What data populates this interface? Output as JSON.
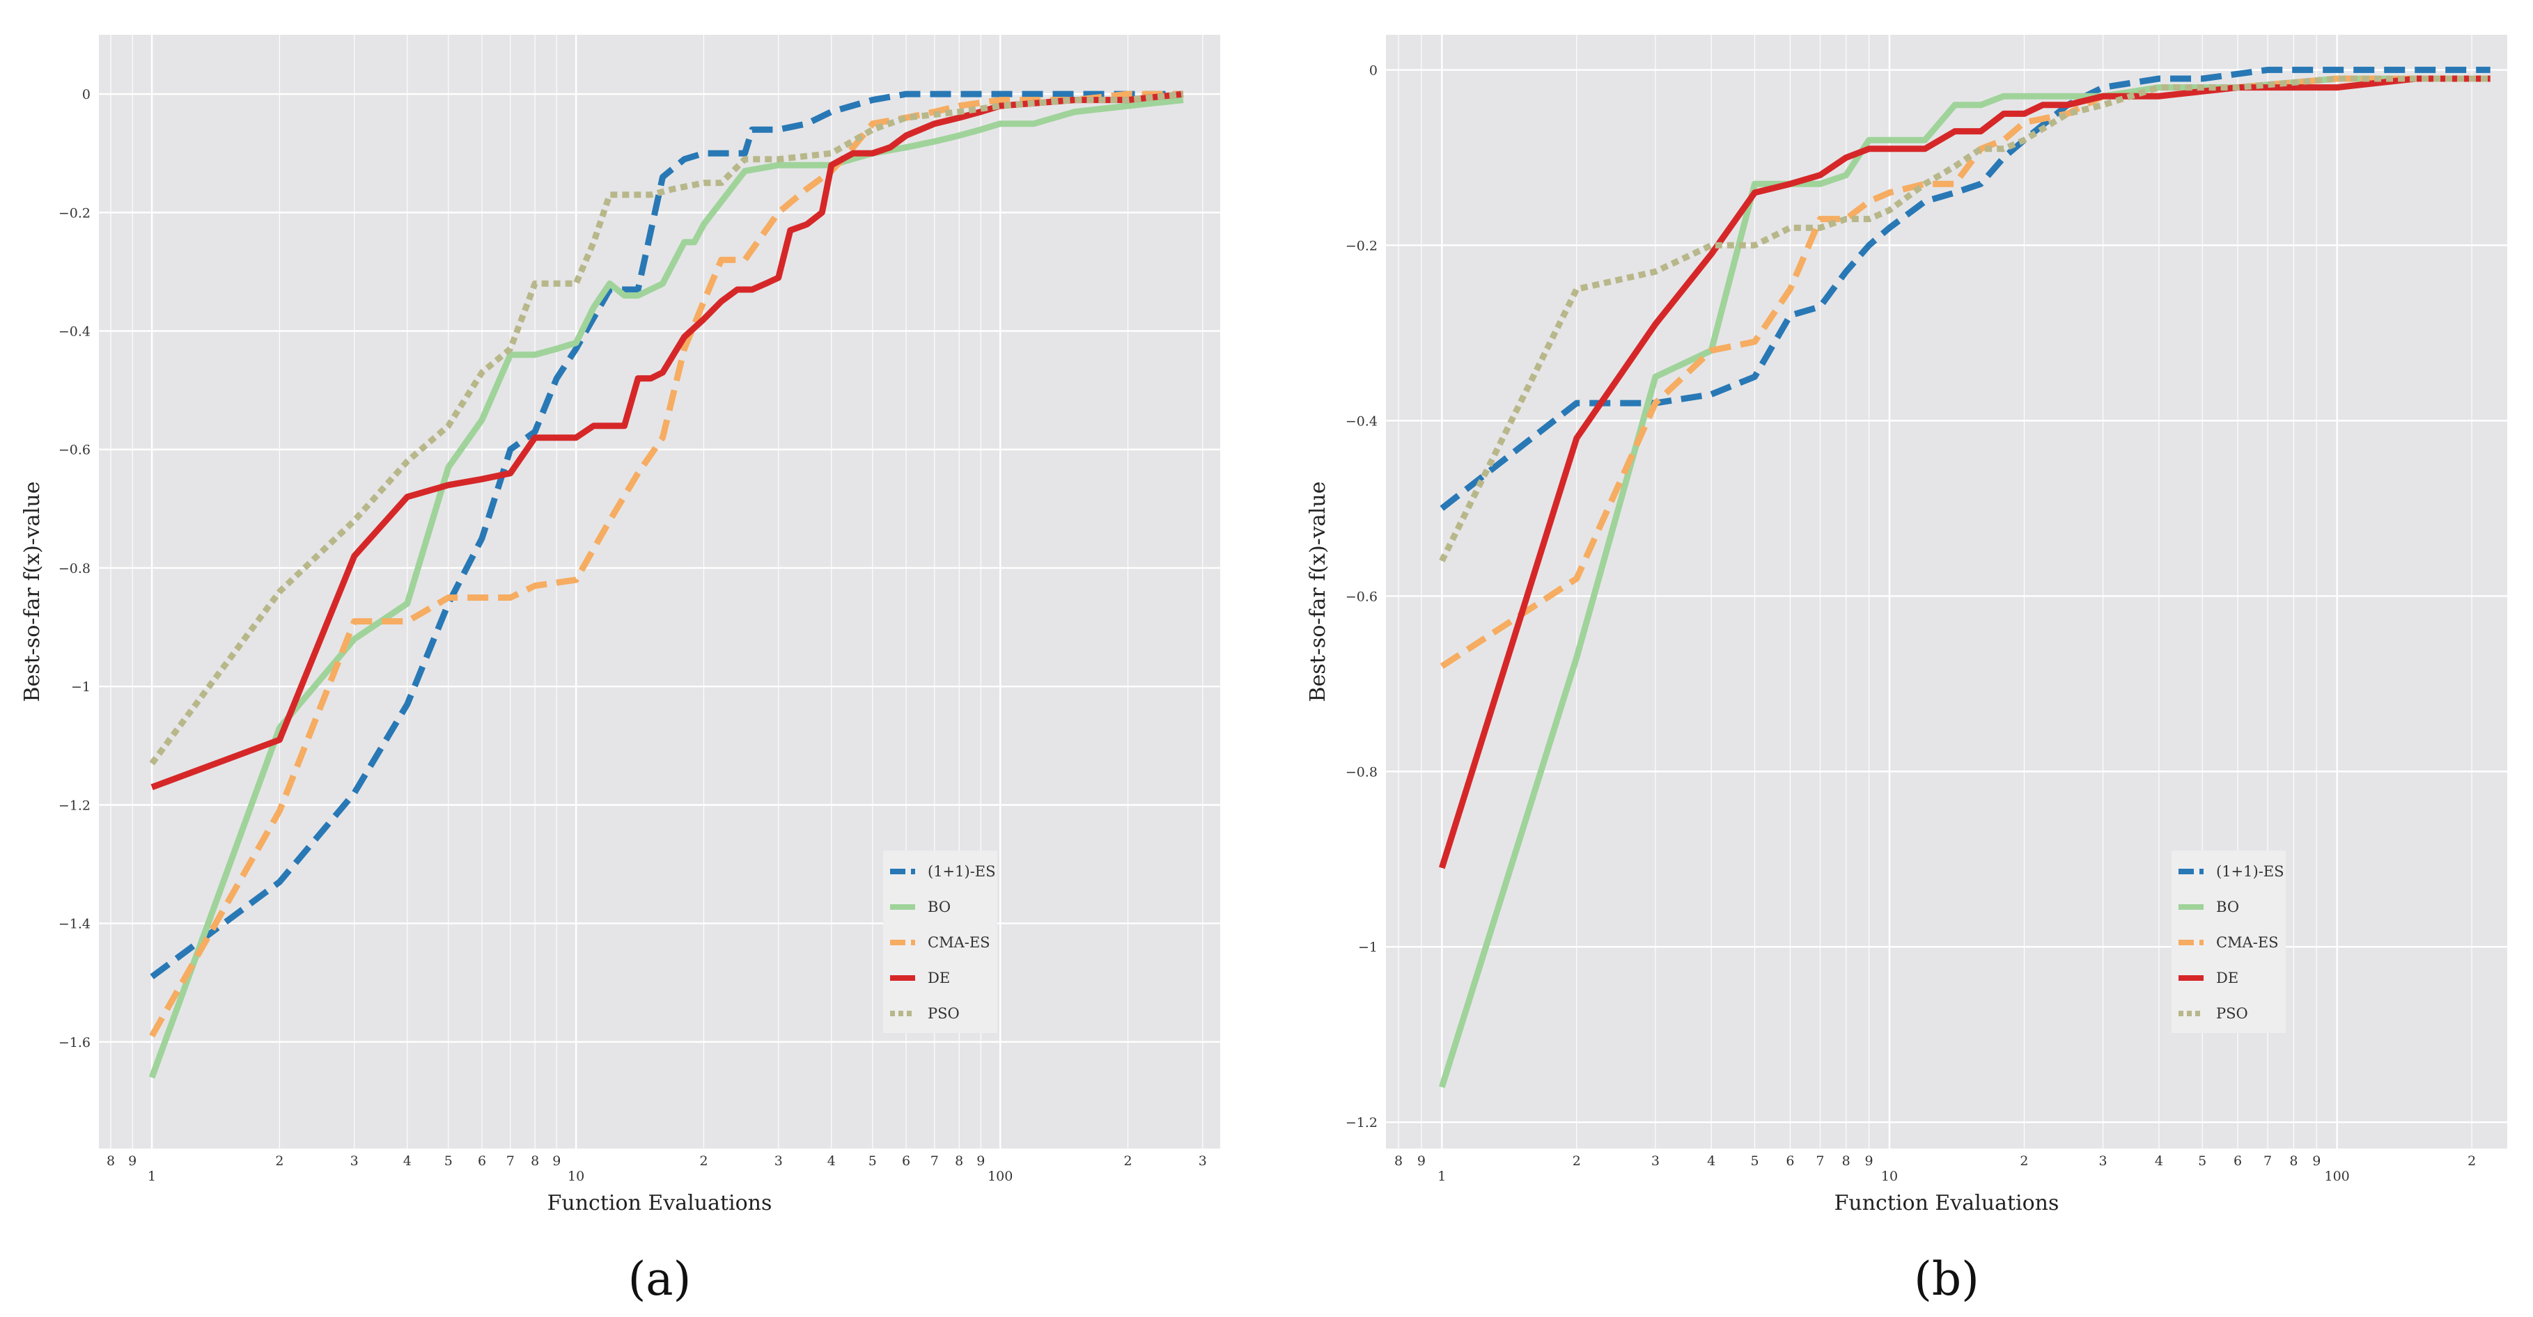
{
  "chart_data": [
    {
      "type": "line",
      "panel_label": "(a)",
      "xlabel": "Function Evaluations",
      "ylabel": "Best-so-far f(x)-value",
      "xscale": "log",
      "xlim": [
        0.75,
        330
      ],
      "ylim": [
        -1.78,
        0.1
      ],
      "xticks_major": [
        {
          "v": 1,
          "label": "1"
        },
        {
          "v": 10,
          "label": "10"
        },
        {
          "v": 100,
          "label": "100"
        }
      ],
      "xticks_minor": [
        {
          "v": 0.8,
          "label": "8"
        },
        {
          "v": 0.9,
          "label": "9"
        },
        {
          "v": 2,
          "label": "2"
        },
        {
          "v": 3,
          "label": "3"
        },
        {
          "v": 4,
          "label": "4"
        },
        {
          "v": 5,
          "label": "5"
        },
        {
          "v": 6,
          "label": "6"
        },
        {
          "v": 7,
          "label": "7"
        },
        {
          "v": 8,
          "label": "8"
        },
        {
          "v": 9,
          "label": "9"
        },
        {
          "v": 20,
          "label": "2"
        },
        {
          "v": 30,
          "label": "3"
        },
        {
          "v": 40,
          "label": "4"
        },
        {
          "v": 50,
          "label": "5"
        },
        {
          "v": 60,
          "label": "6"
        },
        {
          "v": 70,
          "label": "7"
        },
        {
          "v": 80,
          "label": "8"
        },
        {
          "v": 90,
          "label": "9"
        },
        {
          "v": 200,
          "label": "2"
        },
        {
          "v": 300,
          "label": "3"
        }
      ],
      "yticks": [
        {
          "v": 0,
          "label": "0"
        },
        {
          "v": -0.2,
          "label": "−0.2"
        },
        {
          "v": -0.4,
          "label": "−0.4"
        },
        {
          "v": -0.6,
          "label": "−0.6"
        },
        {
          "v": -0.8,
          "label": "−0.8"
        },
        {
          "v": -1,
          "label": "−1"
        },
        {
          "v": -1.2,
          "label": "−1.2"
        },
        {
          "v": -1.4,
          "label": "−1.4"
        },
        {
          "v": -1.6,
          "label": "−1.6"
        }
      ],
      "grid": true,
      "legend_position": "lower-right",
      "series": [
        {
          "name": "(1+1)-ES",
          "style": "dashed",
          "color": "#2878b5",
          "x": [
            1,
            2,
            3,
            4,
            5,
            6,
            7,
            8,
            9,
            10,
            12,
            14,
            16,
            18,
            20,
            25,
            26,
            30,
            35,
            40,
            50,
            60,
            80,
            100,
            150,
            200,
            270
          ],
          "y": [
            -1.49,
            -1.33,
            -1.18,
            -1.03,
            -0.86,
            -0.75,
            -0.6,
            -0.57,
            -0.48,
            -0.43,
            -0.33,
            -0.33,
            -0.14,
            -0.11,
            -0.1,
            -0.1,
            -0.06,
            -0.06,
            -0.05,
            -0.03,
            -0.01,
            0,
            0,
            0,
            0,
            0,
            0
          ]
        },
        {
          "name": "BO",
          "style": "solid",
          "color": "#9fd39a",
          "x": [
            1,
            2,
            3,
            4,
            5,
            6,
            7,
            8,
            9,
            10,
            11,
            12,
            13,
            14,
            16,
            18,
            19,
            20,
            25,
            30,
            40,
            50,
            60,
            70,
            80,
            90,
            100,
            120,
            150,
            200,
            270
          ],
          "y": [
            -1.66,
            -1.07,
            -0.92,
            -0.86,
            -0.63,
            -0.55,
            -0.44,
            -0.44,
            -0.43,
            -0.42,
            -0.36,
            -0.32,
            -0.34,
            -0.34,
            -0.32,
            -0.25,
            -0.25,
            -0.22,
            -0.13,
            -0.12,
            -0.12,
            -0.1,
            -0.09,
            -0.08,
            -0.07,
            -0.06,
            -0.05,
            -0.05,
            -0.03,
            -0.02,
            -0.01
          ]
        },
        {
          "name": "CMA-ES",
          "style": "dashed",
          "color": "#f6ac61",
          "x": [
            1,
            2,
            3,
            4,
            5,
            6,
            7,
            8,
            10,
            12,
            14,
            16,
            18,
            20,
            22,
            25,
            30,
            35,
            40,
            45,
            50,
            60,
            70,
            80,
            100,
            150,
            200,
            270
          ],
          "y": [
            -1.59,
            -1.21,
            -0.89,
            -0.89,
            -0.85,
            -0.85,
            -0.85,
            -0.83,
            -0.82,
            -0.72,
            -0.64,
            -0.58,
            -0.43,
            -0.35,
            -0.28,
            -0.28,
            -0.2,
            -0.16,
            -0.13,
            -0.09,
            -0.05,
            -0.04,
            -0.03,
            -0.02,
            -0.01,
            -0.01,
            0,
            0
          ]
        },
        {
          "name": "DE",
          "style": "solid",
          "color": "#d62728",
          "x": [
            1,
            2,
            3,
            4,
            5,
            6,
            7,
            8,
            9,
            10,
            11,
            12,
            13,
            14,
            15,
            16,
            18,
            20,
            22,
            24,
            26,
            28,
            30,
            32,
            35,
            38,
            40,
            45,
            50,
            55,
            60,
            70,
            80,
            90,
            100,
            150,
            200,
            270
          ],
          "y": [
            -1.17,
            -1.09,
            -0.78,
            -0.68,
            -0.66,
            -0.65,
            -0.64,
            -0.58,
            -0.58,
            -0.58,
            -0.56,
            -0.56,
            -0.56,
            -0.48,
            -0.48,
            -0.47,
            -0.41,
            -0.38,
            -0.35,
            -0.33,
            -0.33,
            -0.32,
            -0.31,
            -0.23,
            -0.22,
            -0.2,
            -0.12,
            -0.1,
            -0.1,
            -0.09,
            -0.07,
            -0.05,
            -0.04,
            -0.03,
            -0.02,
            -0.01,
            -0.01,
            0
          ]
        },
        {
          "name": "PSO",
          "style": "dotted",
          "color": "#b8b78a",
          "x": [
            1,
            2,
            3,
            4,
            5,
            6,
            7,
            8,
            9,
            10,
            11,
            12,
            13,
            15,
            17,
            20,
            22,
            25,
            30,
            40,
            50,
            60,
            80,
            100,
            150,
            200,
            270
          ],
          "y": [
            -1.13,
            -0.84,
            -0.72,
            -0.62,
            -0.56,
            -0.47,
            -0.43,
            -0.32,
            -0.32,
            -0.32,
            -0.25,
            -0.17,
            -0.17,
            -0.17,
            -0.16,
            -0.15,
            -0.15,
            -0.11,
            -0.11,
            -0.1,
            -0.06,
            -0.04,
            -0.03,
            -0.02,
            -0.01,
            -0.01,
            0
          ]
        }
      ]
    },
    {
      "type": "line",
      "panel_label": "(b)",
      "xlabel": "Function Evaluations",
      "ylabel": "Best-so-far f(x)-value",
      "xscale": "log",
      "xlim": [
        0.75,
        240
      ],
      "ylim": [
        -1.23,
        0.04
      ],
      "xticks_major": [
        {
          "v": 1,
          "label": "1"
        },
        {
          "v": 10,
          "label": "10"
        },
        {
          "v": 100,
          "label": "100"
        }
      ],
      "xticks_minor": [
        {
          "v": 0.8,
          "label": "8"
        },
        {
          "v": 0.9,
          "label": "9"
        },
        {
          "v": 2,
          "label": "2"
        },
        {
          "v": 3,
          "label": "3"
        },
        {
          "v": 4,
          "label": "4"
        },
        {
          "v": 5,
          "label": "5"
        },
        {
          "v": 6,
          "label": "6"
        },
        {
          "v": 7,
          "label": "7"
        },
        {
          "v": 8,
          "label": "8"
        },
        {
          "v": 9,
          "label": "9"
        },
        {
          "v": 20,
          "label": "2"
        },
        {
          "v": 30,
          "label": "3"
        },
        {
          "v": 40,
          "label": "4"
        },
        {
          "v": 50,
          "label": "5"
        },
        {
          "v": 60,
          "label": "6"
        },
        {
          "v": 70,
          "label": "7"
        },
        {
          "v": 80,
          "label": "8"
        },
        {
          "v": 90,
          "label": "9"
        },
        {
          "v": 200,
          "label": "2"
        }
      ],
      "yticks": [
        {
          "v": 0,
          "label": "0"
        },
        {
          "v": -0.2,
          "label": "−0.2"
        },
        {
          "v": -0.4,
          "label": "−0.4"
        },
        {
          "v": -0.6,
          "label": "−0.6"
        },
        {
          "v": -0.8,
          "label": "−0.8"
        },
        {
          "v": -1,
          "label": "−1"
        },
        {
          "v": -1.2,
          "label": "−1.2"
        }
      ],
      "grid": true,
      "legend_position": "lower-right",
      "series": [
        {
          "name": "(1+1)-ES",
          "style": "dashed",
          "color": "#2878b5",
          "x": [
            1,
            2,
            3,
            4,
            5,
            6,
            7,
            8,
            9,
            10,
            12,
            14,
            16,
            18,
            20,
            25,
            30,
            40,
            50,
            70,
            100,
            150,
            220
          ],
          "y": [
            -0.5,
            -0.38,
            -0.38,
            -0.37,
            -0.35,
            -0.28,
            -0.27,
            -0.23,
            -0.2,
            -0.18,
            -0.15,
            -0.14,
            -0.13,
            -0.1,
            -0.08,
            -0.04,
            -0.02,
            -0.01,
            -0.01,
            0,
            0,
            0,
            0
          ]
        },
        {
          "name": "BO",
          "style": "solid",
          "color": "#9fd39a",
          "x": [
            1,
            2,
            3,
            4,
            5,
            6,
            7,
            8,
            9,
            10,
            12,
            14,
            16,
            18,
            20,
            25,
            30,
            40,
            60,
            100,
            150,
            220
          ],
          "y": [
            -1.16,
            -0.67,
            -0.35,
            -0.32,
            -0.13,
            -0.13,
            -0.13,
            -0.12,
            -0.08,
            -0.08,
            -0.08,
            -0.04,
            -0.04,
            -0.03,
            -0.03,
            -0.03,
            -0.03,
            -0.02,
            -0.02,
            -0.01,
            -0.01,
            -0.01
          ]
        },
        {
          "name": "CMA-ES",
          "style": "dashed",
          "color": "#f6ac61",
          "x": [
            1,
            2,
            3,
            4,
            5,
            6,
            7,
            8,
            9,
            10,
            12,
            14,
            16,
            18,
            20,
            25,
            30,
            40,
            60,
            100,
            150,
            220
          ],
          "y": [
            -0.68,
            -0.58,
            -0.38,
            -0.32,
            -0.31,
            -0.25,
            -0.17,
            -0.17,
            -0.15,
            -0.14,
            -0.13,
            -0.13,
            -0.09,
            -0.08,
            -0.06,
            -0.05,
            -0.03,
            -0.03,
            -0.02,
            -0.01,
            -0.01,
            -0.01
          ]
        },
        {
          "name": "DE",
          "style": "solid",
          "color": "#d62728",
          "x": [
            1,
            2,
            3,
            4,
            5,
            6,
            7,
            8,
            9,
            10,
            12,
            14,
            16,
            18,
            20,
            22,
            25,
            30,
            40,
            60,
            80,
            100,
            150,
            220
          ],
          "y": [
            -0.91,
            -0.42,
            -0.29,
            -0.21,
            -0.14,
            -0.13,
            -0.12,
            -0.1,
            -0.09,
            -0.09,
            -0.09,
            -0.07,
            -0.07,
            -0.05,
            -0.05,
            -0.04,
            -0.04,
            -0.03,
            -0.03,
            -0.02,
            -0.02,
            -0.02,
            -0.01,
            -0.01
          ]
        },
        {
          "name": "PSO",
          "style": "dotted",
          "color": "#b8b78a",
          "x": [
            1,
            2,
            3,
            4,
            5,
            6,
            7,
            8,
            9,
            10,
            12,
            14,
            16,
            18,
            20,
            25,
            30,
            40,
            60,
            100,
            150,
            220
          ],
          "y": [
            -0.56,
            -0.25,
            -0.23,
            -0.2,
            -0.2,
            -0.18,
            -0.18,
            -0.17,
            -0.17,
            -0.16,
            -0.13,
            -0.11,
            -0.09,
            -0.09,
            -0.08,
            -0.05,
            -0.04,
            -0.02,
            -0.02,
            -0.01,
            -0.01,
            -0.01
          ]
        }
      ]
    }
  ]
}
